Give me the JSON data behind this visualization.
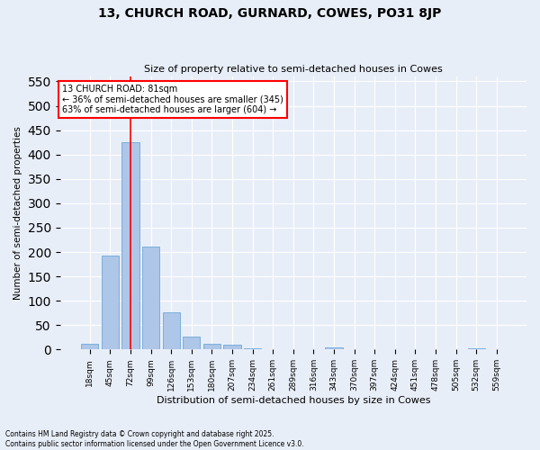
{
  "title": "13, CHURCH ROAD, GURNARD, COWES, PO31 8JP",
  "subtitle": "Size of property relative to semi-detached houses in Cowes",
  "xlabel": "Distribution of semi-detached houses by size in Cowes",
  "ylabel": "Number of semi-detached properties",
  "bar_color": "#aec6e8",
  "bar_edge_color": "#5a9fd4",
  "background_color": "#e8eef8",
  "grid_color": "#ffffff",
  "categories": [
    "18sqm",
    "45sqm",
    "72sqm",
    "99sqm",
    "126sqm",
    "153sqm",
    "180sqm",
    "207sqm",
    "234sqm",
    "261sqm",
    "289sqm",
    "316sqm",
    "343sqm",
    "370sqm",
    "397sqm",
    "424sqm",
    "451sqm",
    "478sqm",
    "505sqm",
    "532sqm",
    "559sqm"
  ],
  "values": [
    12,
    193,
    425,
    211,
    76,
    26,
    11,
    9,
    3,
    0,
    0,
    0,
    4,
    0,
    0,
    0,
    0,
    0,
    0,
    3,
    0
  ],
  "ylim": [
    0,
    560
  ],
  "yticks": [
    0,
    50,
    100,
    150,
    200,
    250,
    300,
    350,
    400,
    450,
    500,
    550
  ],
  "annotation_title": "13 CHURCH ROAD: 81sqm",
  "annotation_line1": "← 36% of semi-detached houses are smaller (345)",
  "annotation_line2": "63% of semi-detached houses are larger (604) →",
  "vline_x_index": 1.98,
  "footer_line1": "Contains HM Land Registry data © Crown copyright and database right 2025.",
  "footer_line2": "Contains public sector information licensed under the Open Government Licence v3.0."
}
